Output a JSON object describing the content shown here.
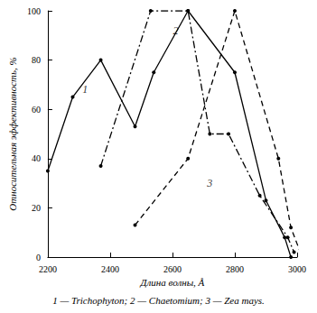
{
  "chart_data": {
    "type": "line",
    "caption": "1 — Trichophyton; 2 — Chaetomium; 3 — Zea mays.",
    "x_label": "Длина волны, Å",
    "y_label": "Относительная эффективность, %",
    "xlim": [
      2200,
      3000
    ],
    "xticks": [
      2200,
      2400,
      2600,
      2800,
      3000
    ],
    "ylim": [
      0,
      100
    ],
    "yticks": [
      0,
      20,
      40,
      60,
      80,
      100
    ],
    "grid": false,
    "series": [
      {
        "name": "1",
        "color": "#000000",
        "marker": "circle",
        "line_style": "solid",
        "x": [
          2200,
          2280,
          2370,
          2480,
          2540,
          2650,
          2800,
          2900,
          2960,
          2980
        ],
        "values": [
          35,
          65,
          80,
          53,
          75,
          100,
          75,
          23,
          8,
          0
        ]
      },
      {
        "name": "2",
        "color": "#000000",
        "marker": "circle",
        "line_style": "dashdot",
        "x": [
          2370,
          2530,
          2650,
          2720,
          2780,
          2880,
          2970,
          2990
        ],
        "values": [
          37,
          100,
          100,
          50,
          50,
          25,
          8,
          2
        ]
      },
      {
        "name": "3",
        "color": "#000000",
        "marker": "circle",
        "line_style": "dashed",
        "x": [
          2480,
          2650,
          2800,
          2940,
          2980,
          3010
        ],
        "values": [
          13,
          40,
          100,
          40,
          12,
          2
        ]
      }
    ],
    "annotations": [
      {
        "text": "1",
        "x": 2320,
        "y": 68
      },
      {
        "text": "2",
        "x": 2610,
        "y": 92
      },
      {
        "text": "3",
        "x": 2720,
        "y": 30
      }
    ]
  }
}
